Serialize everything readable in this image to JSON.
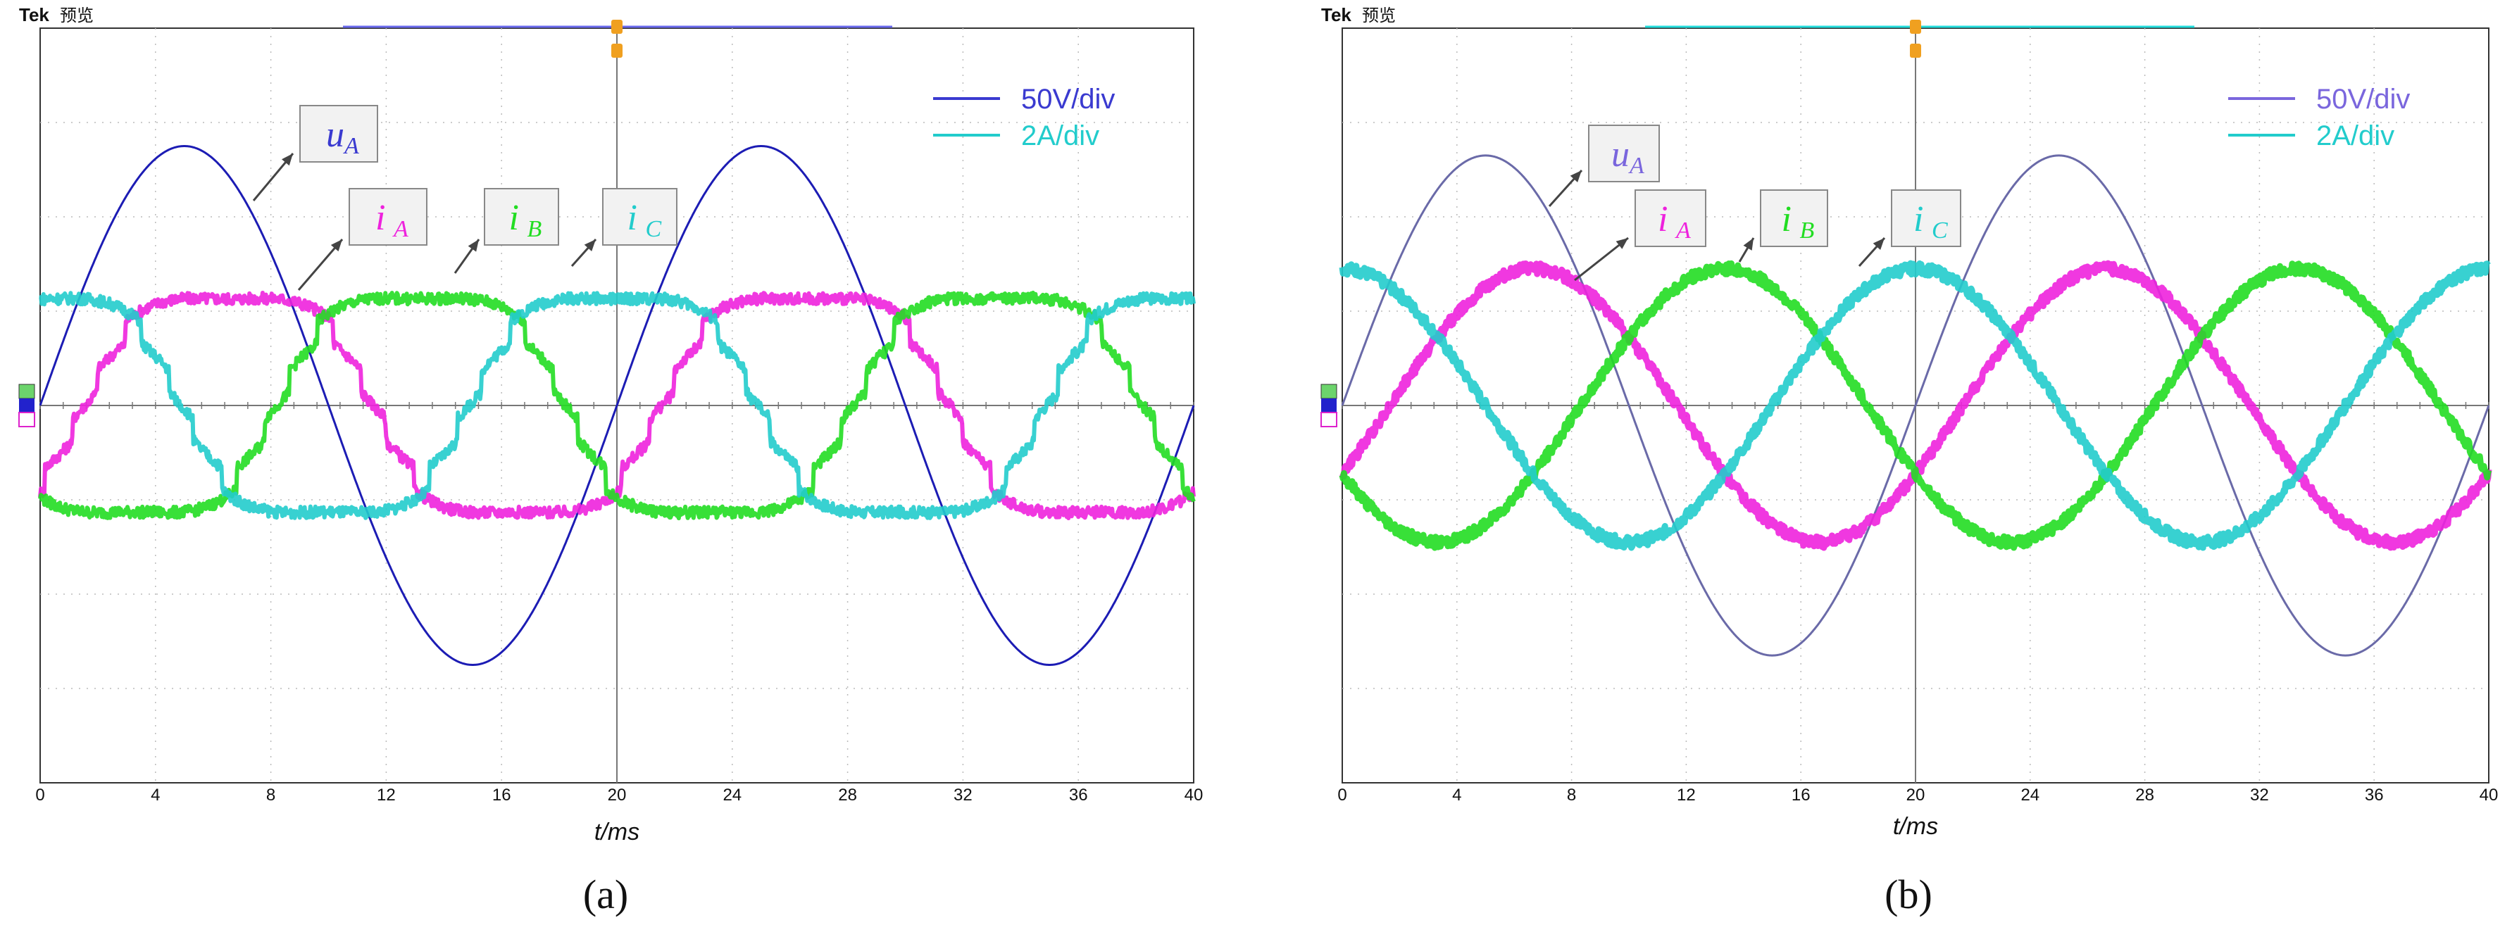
{
  "panels": [
    {
      "caption": "(a)",
      "brand": "Tek",
      "mode": "预览"
    },
    {
      "caption": "(b)",
      "brand": "Tek",
      "mode": "预览"
    }
  ],
  "chart_data": [
    {
      "type": "line",
      "xlabel": "t/ms",
      "xlim": [
        0,
        40
      ],
      "xticks": [
        0,
        4,
        8,
        12,
        16,
        20,
        24,
        28,
        32,
        36,
        40
      ],
      "ylim_div": [
        -4,
        4
      ],
      "grid": true,
      "legend": {
        "placement": "top-right",
        "entries": [
          {
            "label": "50V/div",
            "color": "#3a3ad0"
          },
          {
            "label": "2A/div",
            "color": "#22cccc"
          }
        ]
      },
      "annotations": [
        "u_A",
        "i_A",
        "i_B",
        "i_C"
      ],
      "period_ms": 20,
      "series": [
        {
          "name": "u_A",
          "color": "#1c1cb4",
          "amplitude_div": 2.75,
          "phase_deg": 0,
          "shape": "sine"
        },
        {
          "name": "i_A",
          "color": "#ee22dd",
          "amplitude_div": 1.55,
          "phase_deg": -28,
          "shape": "six-step"
        },
        {
          "name": "i_B",
          "color": "#22dd22",
          "amplitude_div": 1.55,
          "phase_deg": -148,
          "shape": "six-step"
        },
        {
          "name": "i_C",
          "color": "#22cccc",
          "amplitude_div": 1.55,
          "phase_deg": 92,
          "shape": "six-step"
        }
      ]
    },
    {
      "type": "line",
      "xlabel": "t/ms",
      "xlim": [
        0,
        40
      ],
      "xticks": [
        0,
        4,
        8,
        12,
        16,
        20,
        24,
        28,
        32,
        36,
        40
      ],
      "ylim_div": [
        -4,
        4
      ],
      "grid": true,
      "legend": {
        "placement": "top-right",
        "entries": [
          {
            "label": "50V/div",
            "color": "#7a66dd"
          },
          {
            "label": "2A/div",
            "color": "#22cccc"
          }
        ]
      },
      "annotations": [
        "u_A",
        "i_A",
        "i_B",
        "i_C"
      ],
      "period_ms": 20,
      "series": [
        {
          "name": "u_A",
          "color": "#6a6aa8",
          "amplitude_div": 2.65,
          "phase_deg": 0,
          "shape": "sine"
        },
        {
          "name": "i_A",
          "color": "#ee22dd",
          "amplitude_div": 1.45,
          "phase_deg": -30,
          "shape": "sine"
        },
        {
          "name": "i_B",
          "color": "#22dd22",
          "amplitude_div": 1.45,
          "phase_deg": -150,
          "shape": "sine"
        },
        {
          "name": "i_C",
          "color": "#22cccc",
          "amplitude_div": 1.45,
          "phase_deg": 90,
          "shape": "sine"
        }
      ]
    }
  ]
}
